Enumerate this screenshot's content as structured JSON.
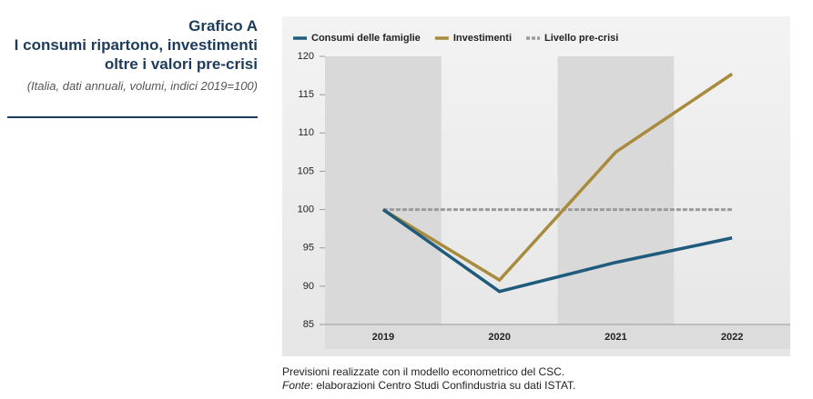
{
  "header": {
    "label": "Grafico A",
    "title_lines": [
      "I consumi ripartono, investimenti",
      "oltre i valori pre-crisi"
    ],
    "subtitle": "(Italia, dati annuali, volumi, indici 2019=100)"
  },
  "chart_data": {
    "type": "line",
    "categories": [
      "2019",
      "2020",
      "2021",
      "2022"
    ],
    "series": [
      {
        "name": "Consumi delle famiglie",
        "color": "#1f5b7c",
        "values": [
          100,
          89.3,
          93.1,
          96.3
        ]
      },
      {
        "name": "Investimenti",
        "color": "#a88b3c",
        "values": [
          100,
          90.8,
          107.5,
          117.7
        ]
      },
      {
        "name": "Livello pre-crisi",
        "color": "#9a9a9a",
        "dashed": true,
        "values": [
          100,
          100,
          100,
          100
        ]
      }
    ],
    "ylim": [
      85,
      120
    ],
    "yticks": [
      85,
      90,
      95,
      100,
      105,
      110,
      115,
      120
    ],
    "legend": "top"
  },
  "notes": {
    "forecast": "Previsioni realizzate con il modello econometrico del CSC.",
    "source_label": "Fonte",
    "source_text": ": elaborazioni Centro Studi Confindustria su dati ISTAT."
  }
}
